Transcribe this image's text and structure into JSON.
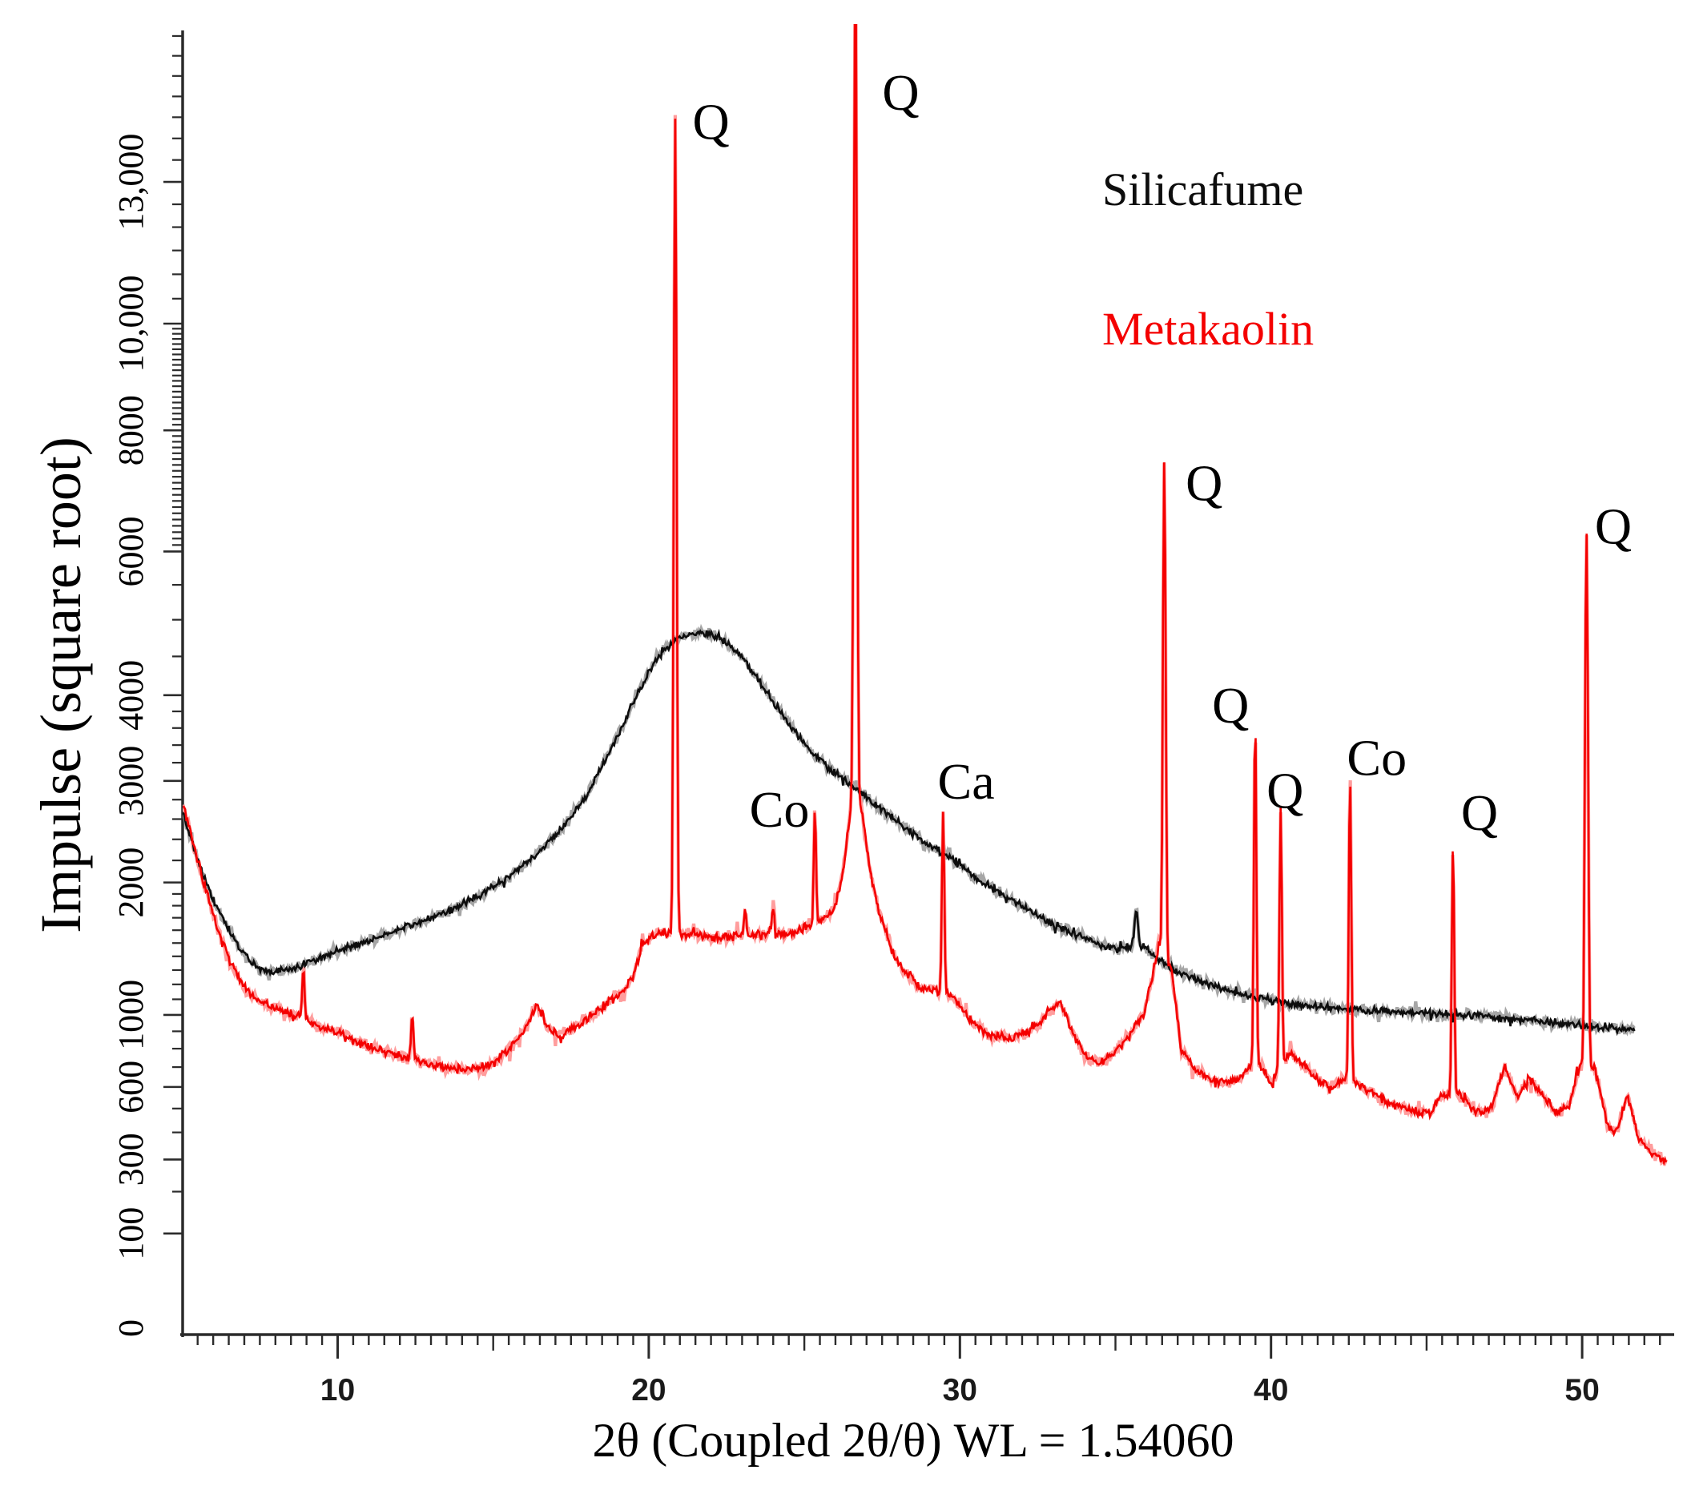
{
  "figure": {
    "y_axis_title": "Impulse (square root)",
    "x_axis_title": "2θ (Coupled 2θ/θ)  WL = 1.54060",
    "legend_silicafume": "Silicafume",
    "legend_metakaolin": "Metakaolin",
    "colors": {
      "silicafume": "#0d0d0d",
      "metakaolin": "#f40000",
      "silicafume_echo": "#a6a6a6",
      "metakaolin_echo": "#ff9d9d",
      "axis": "#2b2b2b"
    }
  },
  "chart_data": {
    "type": "line",
    "title": "",
    "xlabel": "2θ (Coupled 2θ/θ)  WL = 1.54060",
    "ylabel": "Impulse (square root)",
    "wavelength": "1.54060",
    "x_range": [
      5.03,
      52.75
    ],
    "x_major_ticks": [
      10,
      20,
      30,
      40,
      50
    ],
    "x_medium_ticks": [
      15,
      25,
      35,
      45
    ],
    "x_minor_step": 0.5,
    "y_scale": "sqrt",
    "y_range": [
      0,
      16700
    ],
    "y_major_ticks": [
      0,
      100,
      300,
      600,
      1000,
      2000,
      3000,
      4000,
      6000,
      8000,
      10000,
      13000
    ],
    "y_major_tick_labels": [
      "0",
      "100",
      "300",
      "600",
      "1000",
      "2000",
      "3000",
      "4000",
      "6000",
      "8000",
      "10,000",
      "13,000"
    ],
    "legend_position": "top-right",
    "grid": false,
    "series": [
      {
        "name": "Silicafume",
        "color": "#0d0d0d",
        "points": [
          [
            5.03,
            2650
          ],
          [
            5.3,
            2400
          ],
          [
            5.6,
            2120
          ],
          [
            6.0,
            1850
          ],
          [
            6.4,
            1650
          ],
          [
            6.8,
            1480
          ],
          [
            7.2,
            1360
          ],
          [
            7.6,
            1300
          ],
          [
            8.0,
            1290
          ],
          [
            8.5,
            1310
          ],
          [
            9.0,
            1350
          ],
          [
            9.5,
            1395
          ],
          [
            10,
            1440
          ],
          [
            10.5,
            1480
          ],
          [
            11,
            1520
          ],
          [
            11.5,
            1565
          ],
          [
            12,
            1610
          ],
          [
            12.5,
            1655
          ],
          [
            13,
            1700
          ],
          [
            13.5,
            1750
          ],
          [
            14,
            1810
          ],
          [
            14.5,
            1880
          ],
          [
            15,
            1960
          ],
          [
            15.5,
            2050
          ],
          [
            16,
            2160
          ],
          [
            16.5,
            2290
          ],
          [
            17,
            2440
          ],
          [
            17.5,
            2620
          ],
          [
            18,
            2850
          ],
          [
            18.5,
            3150
          ],
          [
            19,
            3500
          ],
          [
            19.5,
            3900
          ],
          [
            20,
            4300
          ],
          [
            20.5,
            4600
          ],
          [
            21,
            4760
          ],
          [
            21.65,
            4830
          ],
          [
            22.1,
            4790
          ],
          [
            22.6,
            4640
          ],
          [
            23.1,
            4430
          ],
          [
            23.6,
            4150
          ],
          [
            24.1,
            3870
          ],
          [
            24.6,
            3600
          ],
          [
            25.1,
            3370
          ],
          [
            25.6,
            3190
          ],
          [
            26.1,
            3060
          ],
          [
            26.6,
            2940
          ],
          [
            27.1,
            2800
          ],
          [
            27.6,
            2670
          ],
          [
            28.1,
            2550
          ],
          [
            28.6,
            2430
          ],
          [
            29.1,
            2330
          ],
          [
            29.6,
            2240
          ],
          [
            30.1,
            2130
          ],
          [
            30.6,
            2030
          ],
          [
            31.1,
            1940
          ],
          [
            31.6,
            1860
          ],
          [
            32.1,
            1780
          ],
          [
            32.6,
            1700
          ],
          [
            33.1,
            1640
          ],
          [
            33.6,
            1580
          ],
          [
            34.1,
            1530
          ],
          [
            34.6,
            1480
          ],
          [
            35.1,
            1450
          ],
          [
            35.4,
            1470
          ],
          [
            35.95,
            1470
          ],
          [
            36.3,
            1390
          ],
          [
            36.8,
            1310
          ],
          [
            37.3,
            1260
          ],
          [
            37.8,
            1215
          ],
          [
            38.3,
            1180
          ],
          [
            38.8,
            1150
          ],
          [
            39.3,
            1120
          ],
          [
            39.8,
            1100
          ],
          [
            40.4,
            1075
          ],
          [
            41,
            1060
          ],
          [
            41.6,
            1050
          ],
          [
            42.2,
            1040
          ],
          [
            42.8,
            1032
          ],
          [
            43.4,
            1026
          ],
          [
            44,
            1020
          ],
          [
            44.6,
            1015
          ],
          [
            45.2,
            1010
          ],
          [
            45.8,
            1005
          ],
          [
            46.4,
            1000
          ],
          [
            47,
            990
          ],
          [
            47.6,
            980
          ],
          [
            48.2,
            968
          ],
          [
            48.8,
            955
          ],
          [
            49.4,
            945
          ],
          [
            50,
            935
          ],
          [
            50.6,
            925
          ],
          [
            51.2,
            915
          ],
          [
            51.7,
            905
          ]
        ],
        "peaks": [
          {
            "center": 35.67,
            "add": 300,
            "sigma": 0.07
          }
        ]
      },
      {
        "name": "Metakaolin",
        "color": "#f40000",
        "points": [
          [
            5.03,
            2750
          ],
          [
            5.4,
            2300
          ],
          [
            5.8,
            1900
          ],
          [
            6.2,
            1560
          ],
          [
            6.6,
            1330
          ],
          [
            7.0,
            1180
          ],
          [
            7.4,
            1100
          ],
          [
            7.8,
            1060
          ],
          [
            8.3,
            1020
          ],
          [
            8.9,
            980
          ],
          [
            9.4,
            930
          ],
          [
            10,
            890
          ],
          [
            10.6,
            840
          ],
          [
            11.2,
            800
          ],
          [
            11.8,
            770
          ],
          [
            12.4,
            745
          ],
          [
            13,
            710
          ],
          [
            13.6,
            695
          ],
          [
            14.2,
            685
          ],
          [
            14.8,
            700
          ],
          [
            15.4,
            780
          ],
          [
            16,
            900
          ],
          [
            16.4,
            1070
          ],
          [
            16.8,
            900
          ],
          [
            17.2,
            880
          ],
          [
            17.7,
            930
          ],
          [
            18.2,
            1000
          ],
          [
            18.7,
            1080
          ],
          [
            19.2,
            1160
          ],
          [
            19.5,
            1250
          ],
          [
            19.8,
            1480
          ],
          [
            20.1,
            1560
          ],
          [
            20.5,
            1580
          ],
          [
            21,
            1580
          ],
          [
            21.5,
            1560
          ],
          [
            22,
            1540
          ],
          [
            22.5,
            1540
          ],
          [
            23,
            1560
          ],
          [
            23.5,
            1570
          ],
          [
            24,
            1580
          ],
          [
            24.5,
            1560
          ],
          [
            25,
            1620
          ],
          [
            25.6,
            1680
          ],
          [
            26,
            1800
          ],
          [
            26.25,
            2100
          ],
          [
            26.45,
            2600
          ],
          [
            26.64,
            2900
          ],
          [
            26.85,
            2700
          ],
          [
            27.1,
            2100
          ],
          [
            27.4,
            1750
          ],
          [
            27.8,
            1450
          ],
          [
            28.2,
            1290
          ],
          [
            28.7,
            1190
          ],
          [
            29.2,
            1160
          ],
          [
            29.8,
            1120
          ],
          [
            30.4,
            950
          ],
          [
            31,
            880
          ],
          [
            31.7,
            860
          ],
          [
            32.3,
            900
          ],
          [
            32.8,
            1000
          ],
          [
            33.2,
            1090
          ],
          [
            33.6,
            900
          ],
          [
            34,
            760
          ],
          [
            34.5,
            720
          ],
          [
            35,
            780
          ],
          [
            35.5,
            900
          ],
          [
            35.9,
            1000
          ],
          [
            36.2,
            1250
          ],
          [
            36.4,
            1500
          ],
          [
            36.8,
            1300
          ],
          [
            37.1,
            800
          ],
          [
            37.5,
            700
          ],
          [
            38,
            640
          ],
          [
            38.5,
            620
          ],
          [
            39,
            640
          ],
          [
            39.3,
            700
          ],
          [
            39.7,
            700
          ],
          [
            40,
            620
          ],
          [
            40.6,
            780
          ],
          [
            41,
            720
          ],
          [
            41.4,
            660
          ],
          [
            41.9,
            590
          ],
          [
            42.3,
            640
          ],
          [
            42.8,
            620
          ],
          [
            43.3,
            560
          ],
          [
            43.9,
            520
          ],
          [
            44.5,
            490
          ],
          [
            45.1,
            480
          ],
          [
            45.5,
            560
          ],
          [
            46.1,
            560
          ],
          [
            46.6,
            480
          ],
          [
            47.1,
            500
          ],
          [
            47.5,
            700
          ],
          [
            47.9,
            560
          ],
          [
            48.3,
            640
          ],
          [
            48.7,
            560
          ],
          [
            49.2,
            480
          ],
          [
            49.6,
            520
          ],
          [
            49.9,
            700
          ],
          [
            50.4,
            700
          ],
          [
            50.8,
            430
          ],
          [
            51.1,
            400
          ],
          [
            51.45,
            560
          ],
          [
            51.8,
            380
          ],
          [
            52.2,
            330
          ],
          [
            52.72,
            290
          ]
        ],
        "peaks": [
          {
            "center": 8.9,
            "add": 330,
            "sigma": 0.05
          },
          {
            "center": 12.4,
            "add": 250,
            "sigma": 0.05
          },
          {
            "center": 20.85,
            "add": 12920,
            "sigma": 0.055
          },
          {
            "center": 23.1,
            "add": 220,
            "sigma": 0.05
          },
          {
            "center": 24.0,
            "add": 240,
            "sigma": 0.05
          },
          {
            "center": 25.34,
            "add": 1020,
            "sigma": 0.05
          },
          {
            "center": 26.64,
            "add": 16500,
            "sigma": 0.06
          },
          {
            "center": 29.46,
            "add": 1540,
            "sigma": 0.05
          },
          {
            "center": 36.57,
            "add": 6100,
            "sigma": 0.055
          },
          {
            "center": 39.49,
            "add": 3000,
            "sigma": 0.05
          },
          {
            "center": 40.31,
            "add": 2000,
            "sigma": 0.05
          },
          {
            "center": 42.54,
            "add": 2450,
            "sigma": 0.05
          },
          {
            "center": 45.85,
            "add": 1800,
            "sigma": 0.05
          },
          {
            "center": 50.14,
            "add": 5600,
            "sigma": 0.06
          }
        ]
      }
    ],
    "annotations": [
      {
        "label": "Q",
        "t": 22.0,
        "v": 14400
      },
      {
        "label": "Q",
        "t": 28.1,
        "v": 15100
      },
      {
        "label": "Co",
        "t": 24.2,
        "v": 2700
      },
      {
        "label": "Ca",
        "t": 30.2,
        "v": 3000
      },
      {
        "label": "Q",
        "t": 37.85,
        "v": 7100
      },
      {
        "label": "Q",
        "t": 38.7,
        "v": 3880
      },
      {
        "label": "Q",
        "t": 40.45,
        "v": 2900
      },
      {
        "label": "Co",
        "t": 43.4,
        "v": 3260
      },
      {
        "label": "Q",
        "t": 46.7,
        "v": 2670
      },
      {
        "label": "Q",
        "t": 51.0,
        "v": 6400
      }
    ]
  }
}
